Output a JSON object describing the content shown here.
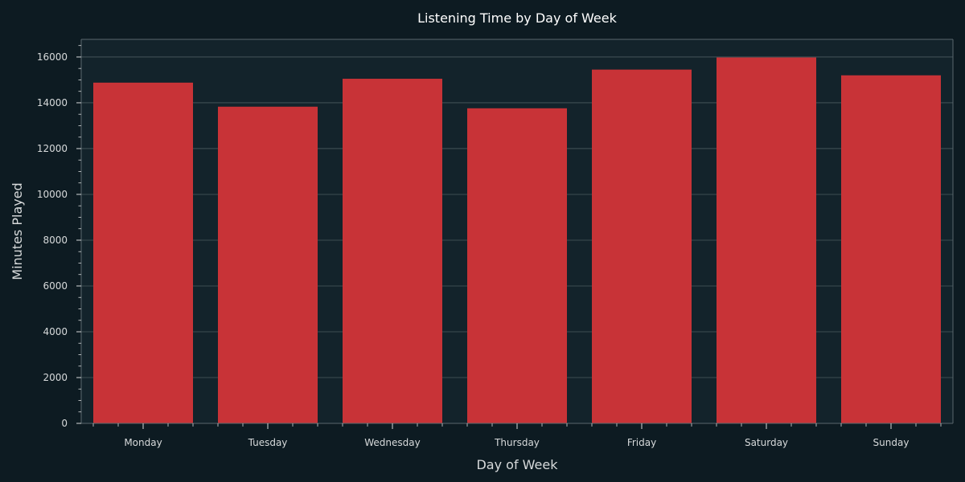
{
  "colors": {
    "background": "#0d1b22",
    "plot_background": "#13232b",
    "bar": "#c83337",
    "grid": "#4d5b61",
    "axis": "#5a676d",
    "text": "#d7dadb",
    "title": "#ffffff"
  },
  "chart_data": {
    "type": "bar",
    "title": "Listening Time by Day of Week",
    "xlabel": "Day of Week",
    "ylabel": "Minutes Played",
    "categories": [
      "Monday",
      "Tuesday",
      "Wednesday",
      "Thursday",
      "Friday",
      "Saturday",
      "Sunday"
    ],
    "values": [
      14880,
      13830,
      15050,
      13760,
      15450,
      15980,
      15200
    ],
    "ylim": [
      0,
      16770
    ],
    "yticks": [
      "0",
      "2000",
      "4000",
      "6000",
      "8000",
      "10000",
      "12000",
      "14000",
      "16000"
    ],
    "grid": true,
    "legend": "none"
  }
}
